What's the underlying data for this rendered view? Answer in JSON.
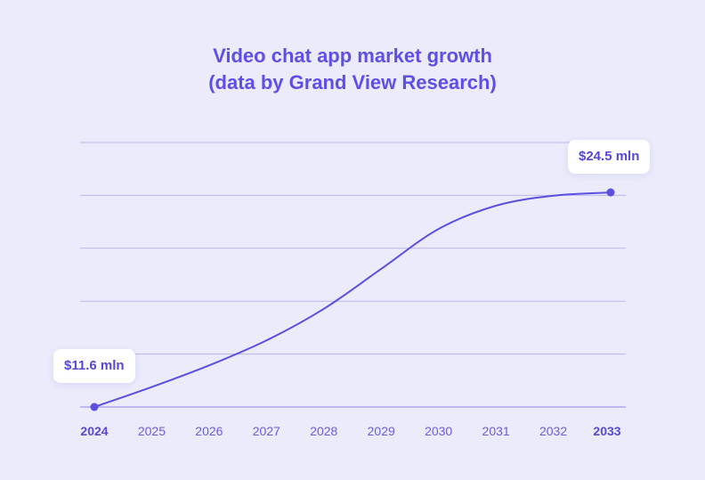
{
  "colors": {
    "background": "#ebebfc",
    "accent": "#5f4ee8",
    "line": "#5b4fe0",
    "grid": "#b9b5f0"
  },
  "chart_data": {
    "type": "line",
    "title": "Video chat app market growth (data by Grand View Research)",
    "title_lines": [
      "Video chat app market growth",
      "(data by Grand View Research)"
    ],
    "xlabel": "",
    "ylabel": "",
    "x": [
      "2024",
      "2025",
      "2026",
      "2027",
      "2028",
      "2029",
      "2030",
      "2031",
      "2032",
      "2033"
    ],
    "series": [
      {
        "values": [
          11.6,
          12.8,
          14.1,
          15.6,
          17.5,
          19.9,
          22.3,
          23.7,
          24.3,
          24.5
        ]
      }
    ],
    "annotations": [
      {
        "label": "$11.6 mln",
        "x": "2024",
        "y": 11.6
      },
      {
        "label": "$24.5 mln",
        "x": "2033",
        "y": 24.5
      }
    ],
    "ylim": [
      11.6,
      27.5
    ],
    "grid": "horizontal",
    "legend": "none",
    "y_tick_labels": "hidden"
  }
}
